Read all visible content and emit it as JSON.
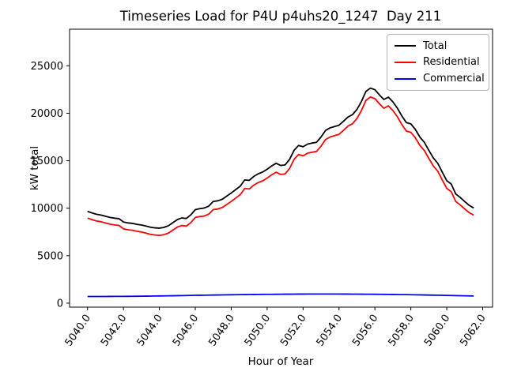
{
  "figure": {
    "title": "Timeseries Load for P4U p4uhs20_1247  Day 211",
    "xlabel": "Hour of Year",
    "ylabel": "kW total"
  },
  "legend": {
    "position": "upper right",
    "items": [
      {
        "label": "Total",
        "color": "#000000"
      },
      {
        "label": "Residential",
        "color": "#ff0000"
      },
      {
        "label": "Commercial",
        "color": "#0000ff"
      }
    ]
  },
  "chart_data": {
    "type": "line",
    "title": "Timeseries Load for P4U p4uhs20_1247  Day 211",
    "xlabel": "Hour of Year",
    "ylabel": "kW total",
    "grid": false,
    "legend_position": "upper right",
    "xlim": [
      5039.0,
      5062.55
    ],
    "ylim": [
      -420,
      28850
    ],
    "xticks": [
      5040,
      5042,
      5044,
      5046,
      5048,
      5050,
      5052,
      5054,
      5056,
      5058,
      5060,
      5062
    ],
    "xtick_labels": [
      "5040.0",
      "5042.0",
      "5044.0",
      "5046.0",
      "5048.0",
      "5050.0",
      "5052.0",
      "5054.0",
      "5056.0",
      "5058.0",
      "5060.0",
      "5062.0"
    ],
    "yticks": [
      0,
      5000,
      10000,
      15000,
      20000,
      25000
    ],
    "ytick_labels": [
      "0",
      "5000",
      "10000",
      "15000",
      "20000",
      "25000"
    ],
    "x": [
      5040.0,
      5040.25,
      5040.5,
      5040.75,
      5041.0,
      5041.25,
      5041.5,
      5041.75,
      5042.0,
      5042.25,
      5042.5,
      5042.75,
      5043.0,
      5043.25,
      5043.5,
      5043.75,
      5044.0,
      5044.25,
      5044.5,
      5044.75,
      5045.0,
      5045.25,
      5045.5,
      5045.75,
      5046.0,
      5046.25,
      5046.5,
      5046.75,
      5047.0,
      5047.25,
      5047.5,
      5047.75,
      5048.0,
      5048.25,
      5048.5,
      5048.75,
      5049.0,
      5049.25,
      5049.5,
      5049.75,
      5050.0,
      5050.25,
      5050.5,
      5050.75,
      5051.0,
      5051.25,
      5051.5,
      5051.75,
      5052.0,
      5052.25,
      5052.5,
      5052.75,
      5053.0,
      5053.25,
      5053.5,
      5053.75,
      5054.0,
      5054.25,
      5054.5,
      5054.75,
      5055.0,
      5055.25,
      5055.5,
      5055.75,
      5056.0,
      5056.25,
      5056.5,
      5056.75,
      5057.0,
      5057.25,
      5057.5,
      5057.75,
      5058.0,
      5058.25,
      5058.5,
      5058.75,
      5059.0,
      5059.25,
      5059.5,
      5059.75,
      5060.0,
      5060.25,
      5060.5,
      5060.75,
      5061.0,
      5061.25,
      5061.5
    ],
    "series": [
      {
        "name": "Total",
        "color": "#000000",
        "values": [
          9660,
          9500,
          9360,
          9280,
          9150,
          9030,
          8950,
          8900,
          8550,
          8450,
          8400,
          8300,
          8230,
          8120,
          8000,
          7930,
          7900,
          7980,
          8150,
          8480,
          8800,
          8980,
          8920,
          9300,
          9850,
          9950,
          10020,
          10220,
          10710,
          10780,
          10940,
          11270,
          11600,
          11960,
          12320,
          12980,
          12930,
          13340,
          13620,
          13810,
          14100,
          14450,
          14730,
          14500,
          14560,
          15140,
          16100,
          16610,
          16470,
          16750,
          16860,
          16940,
          17500,
          18190,
          18460,
          18600,
          18740,
          19160,
          19600,
          19850,
          20400,
          21240,
          22300,
          22650,
          22480,
          21930,
          21450,
          21700,
          21200,
          20540,
          19710,
          19020,
          18880,
          18300,
          17500,
          16940,
          16100,
          15300,
          14730,
          13800,
          12900,
          12540,
          11500,
          11130,
          10700,
          10300,
          10020
        ]
      },
      {
        "name": "Residential",
        "color": "#ff0000",
        "values": [
          8960,
          8798,
          8657,
          8576,
          8445,
          8323,
          8240,
          8188,
          7835,
          7730,
          7675,
          7570,
          7495,
          7379,
          7253,
          7177,
          7140,
          7213,
          7375,
          7698,
          8010,
          8181,
          8112,
          8484,
          9025,
          9118,
          9180,
          9372,
          9855,
          9917,
          10070,
          10392,
          10715,
          11069,
          11422,
          12076,
          12020,
          12425,
          12700,
          12885,
          13170,
          13516,
          13792,
          13558,
          13615,
          14192,
          15148,
          15655,
          15512,
          15790,
          15898,
          15976,
          16535,
          17226,
          17497,
          17638,
          17780,
          18202,
          18645,
          18897,
          19450,
          20294,
          21357,
          21711,
          21545,
          21000,
          20525,
          20780,
          20285,
          19631,
          18807,
          18123,
          17990,
          17418,
          16627,
          16076,
          15245,
          14455,
          13895,
          12975,
          12085,
          11735,
          10705,
          10345,
          9925,
          9535,
          9265
        ]
      },
      {
        "name": "Commercial",
        "color": "#0000ff",
        "values": [
          700,
          702,
          703,
          704,
          705,
          707,
          710,
          712,
          715,
          720,
          725,
          730,
          735,
          741,
          747,
          753,
          760,
          767,
          775,
          782,
          790,
          799,
          808,
          816,
          825,
          832,
          840,
          848,
          855,
          863,
          870,
          878,
          885,
          891,
          898,
          904,
          910,
          915,
          920,
          925,
          930,
          934,
          938,
          942,
          945,
          948,
          952,
          955,
          958,
          960,
          962,
          964,
          965,
          964,
          963,
          962,
          960,
          958,
          955,
          953,
          950,
          946,
          943,
          939,
          935,
          930,
          925,
          920,
          915,
          909,
          903,
          897,
          890,
          882,
          873,
          864,
          855,
          845,
          835,
          825,
          815,
          805,
          795,
          785,
          775,
          765,
          755
        ]
      }
    ]
  }
}
